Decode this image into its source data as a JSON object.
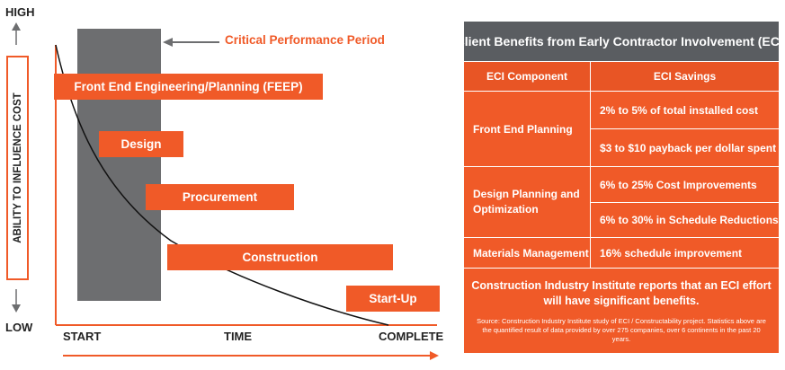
{
  "diagram": {
    "y_high": "HIGH",
    "y_low": "LOW",
    "y_axis_title": "ABILITY TO INFLUENCE COST",
    "x_start": "START",
    "x_time": "TIME",
    "x_complete": "COMPLETE",
    "critical_period_label": "Critical Performance Period",
    "phases": [
      "Front End Engineering/Planning (FEEP)",
      "Design",
      "Procurement",
      "Construction",
      "Start-Up"
    ],
    "colors": {
      "accent": "#f05a28",
      "period_shade": "#6d6e70",
      "curve": "#111111"
    }
  },
  "table": {
    "title": "Client Benefits from Early Contractor Involvement (ECI)",
    "headers": [
      "ECI Component",
      "ECI Savings"
    ],
    "rows": [
      {
        "component": "Front End Planning",
        "savings": [
          "2% to 5% of total installed cost",
          "$3 to $10 payback per dollar spent"
        ]
      },
      {
        "component": "Design Planning and Optimization",
        "savings": [
          "6% to 25% Cost Improvements",
          "6% to 30% in Schedule Reductions"
        ]
      },
      {
        "component": "Materials Management",
        "savings": [
          "16% schedule improvement"
        ]
      }
    ],
    "footer": "Construction Industry Institute reports that an ECI effort will have significant benefits.",
    "source": "Source: Construction Industry Institute study of ECI / Constructability project. Statistics above are the quantified result of data provided by over 275 companies, over 6 continents in the past 20 years.",
    "colors": {
      "panel": "#f05a28",
      "title_bar": "#5a5d61"
    }
  }
}
